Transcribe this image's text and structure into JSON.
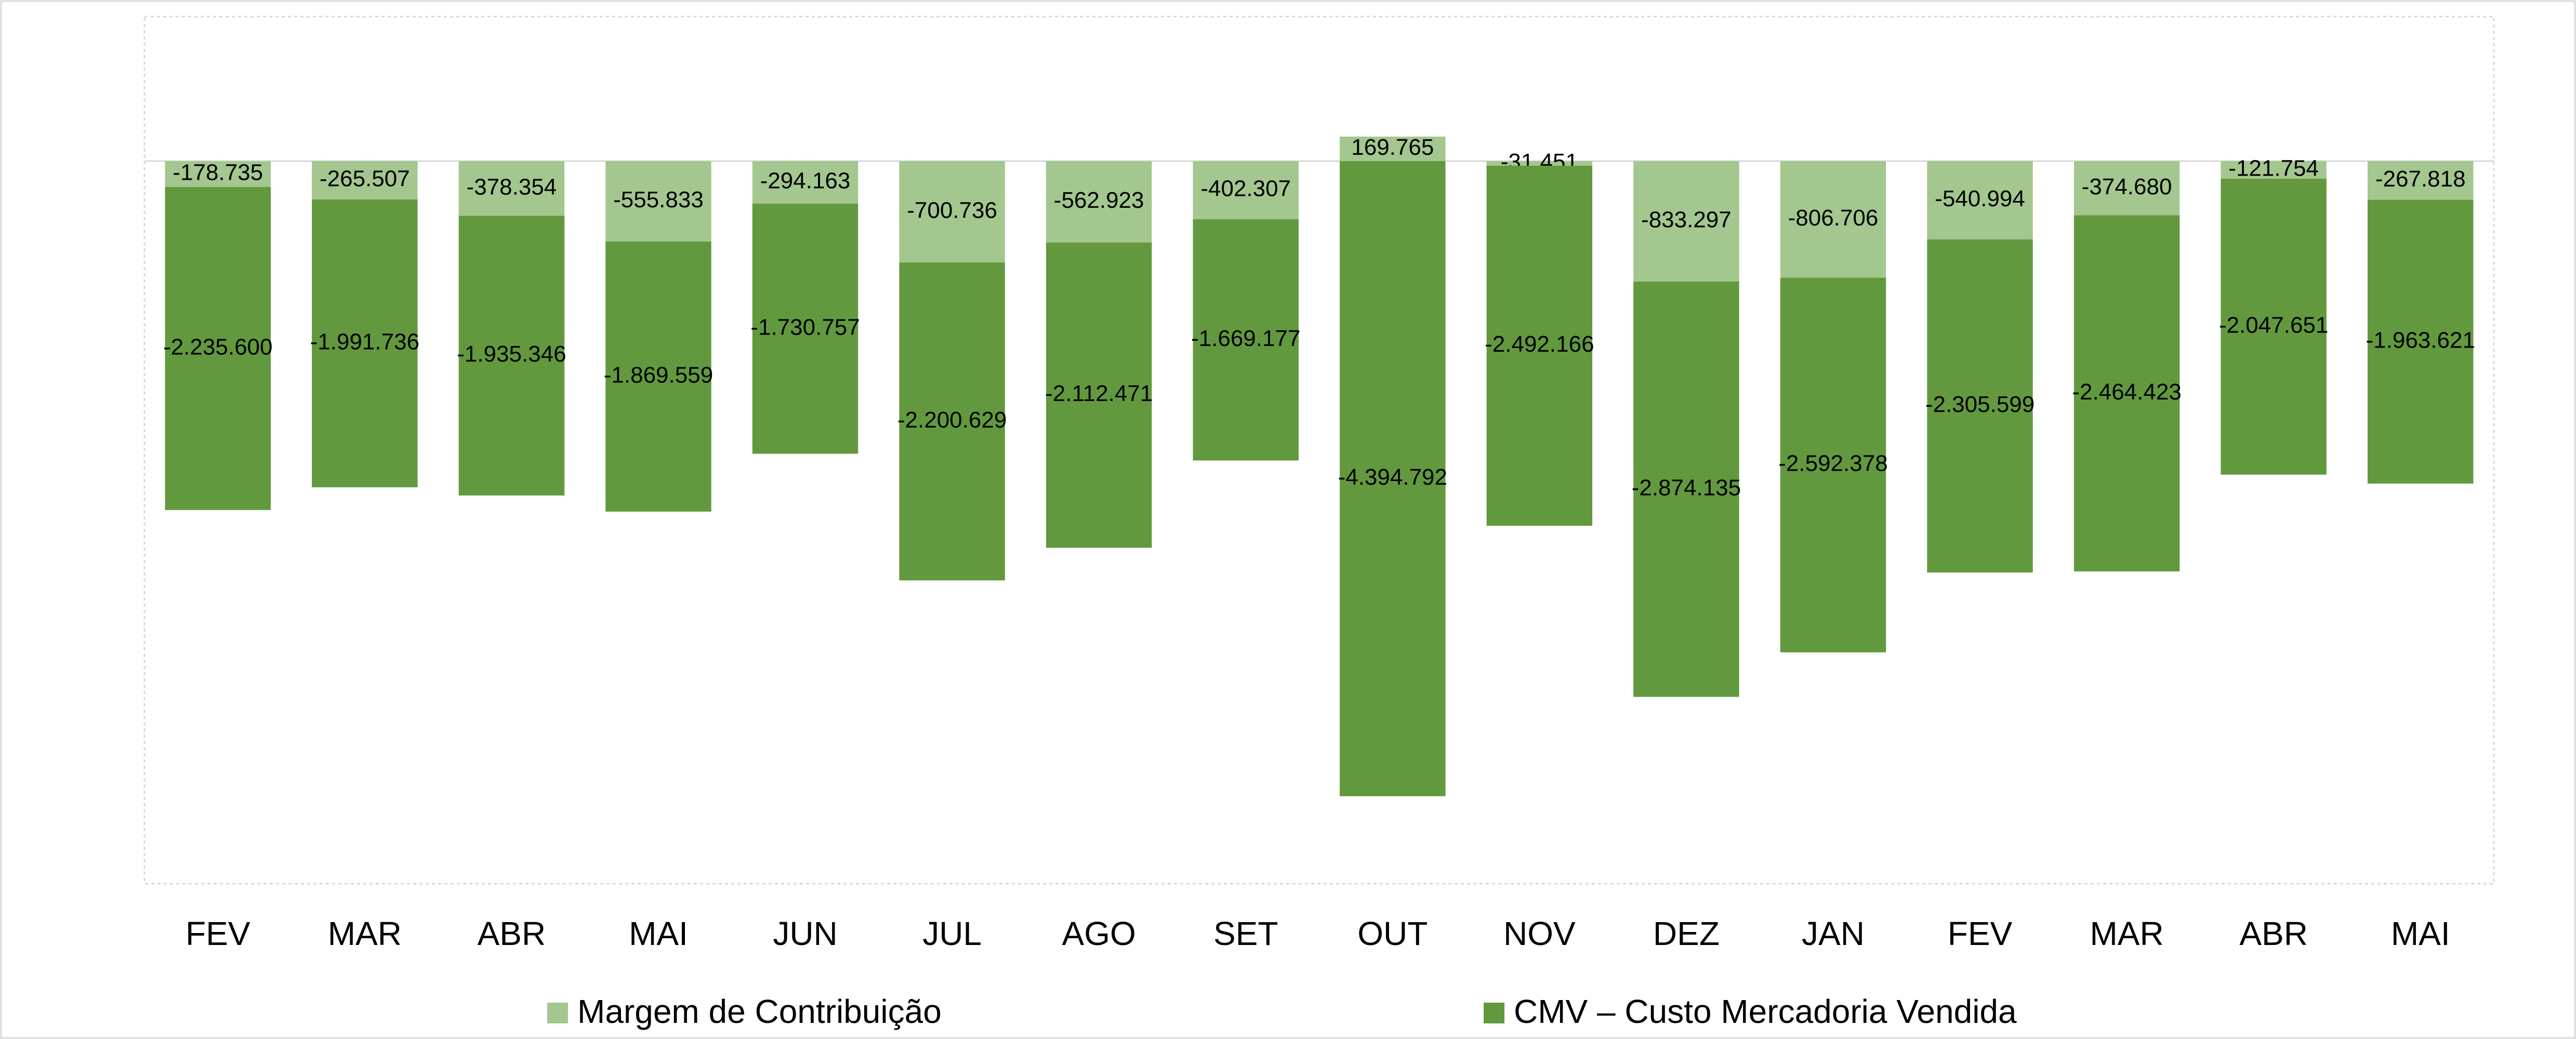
{
  "chart_data": {
    "type": "stacked_bar",
    "categories": [
      "FEV",
      "MAR",
      "ABR",
      "MAI",
      "JUN",
      "JUL",
      "AGO",
      "SET",
      "OUT",
      "NOV",
      "DEZ",
      "JAN",
      "FEV",
      "MAR",
      "ABR",
      "MAI"
    ],
    "series": [
      {
        "name": "Margem de Contribuição",
        "color": "#a3c78f",
        "values": [
          -178735,
          -265507,
          -378354,
          -555833,
          -294163,
          -700736,
          -562923,
          -402307,
          169765,
          -31451,
          -833297,
          -806706,
          -540994,
          -374680,
          -121754,
          -267818
        ],
        "value_labels": [
          "-178.735",
          "-265.507",
          "-378.354",
          "-555.833",
          "-294.163",
          "-700.736",
          "-562.923",
          "-402.307",
          "169.765",
          "-31.451",
          "-833.297",
          "-806.706",
          "-540.994",
          "-374.680",
          "-121.754",
          "-267.818"
        ]
      },
      {
        "name": "CMV – Custo Mercadoria Vendida",
        "color": "#62993e",
        "values": [
          -2235600,
          -1991736,
          -1935346,
          -1869559,
          -1730757,
          -2200629,
          -2112471,
          -1669177,
          -4394792,
          -2492166,
          -2874135,
          -2592378,
          -2305599,
          -2464423,
          -2047651,
          -1963621
        ],
        "value_labels": [
          "-2.235.600",
          "-1.991.736",
          "-1.935.346",
          "-1.869.559",
          "-1.730.757",
          "-2.200.629",
          "-2.112.471",
          "-1.669.177",
          "-4.394.792",
          "-2.492.166",
          "-2.874.135",
          "-2.592.378",
          "-2.305.599",
          "-2.464.423",
          "-2.047.651",
          "-1.963.621"
        ]
      }
    ],
    "ylim": [
      -5000000,
      1000000
    ]
  }
}
